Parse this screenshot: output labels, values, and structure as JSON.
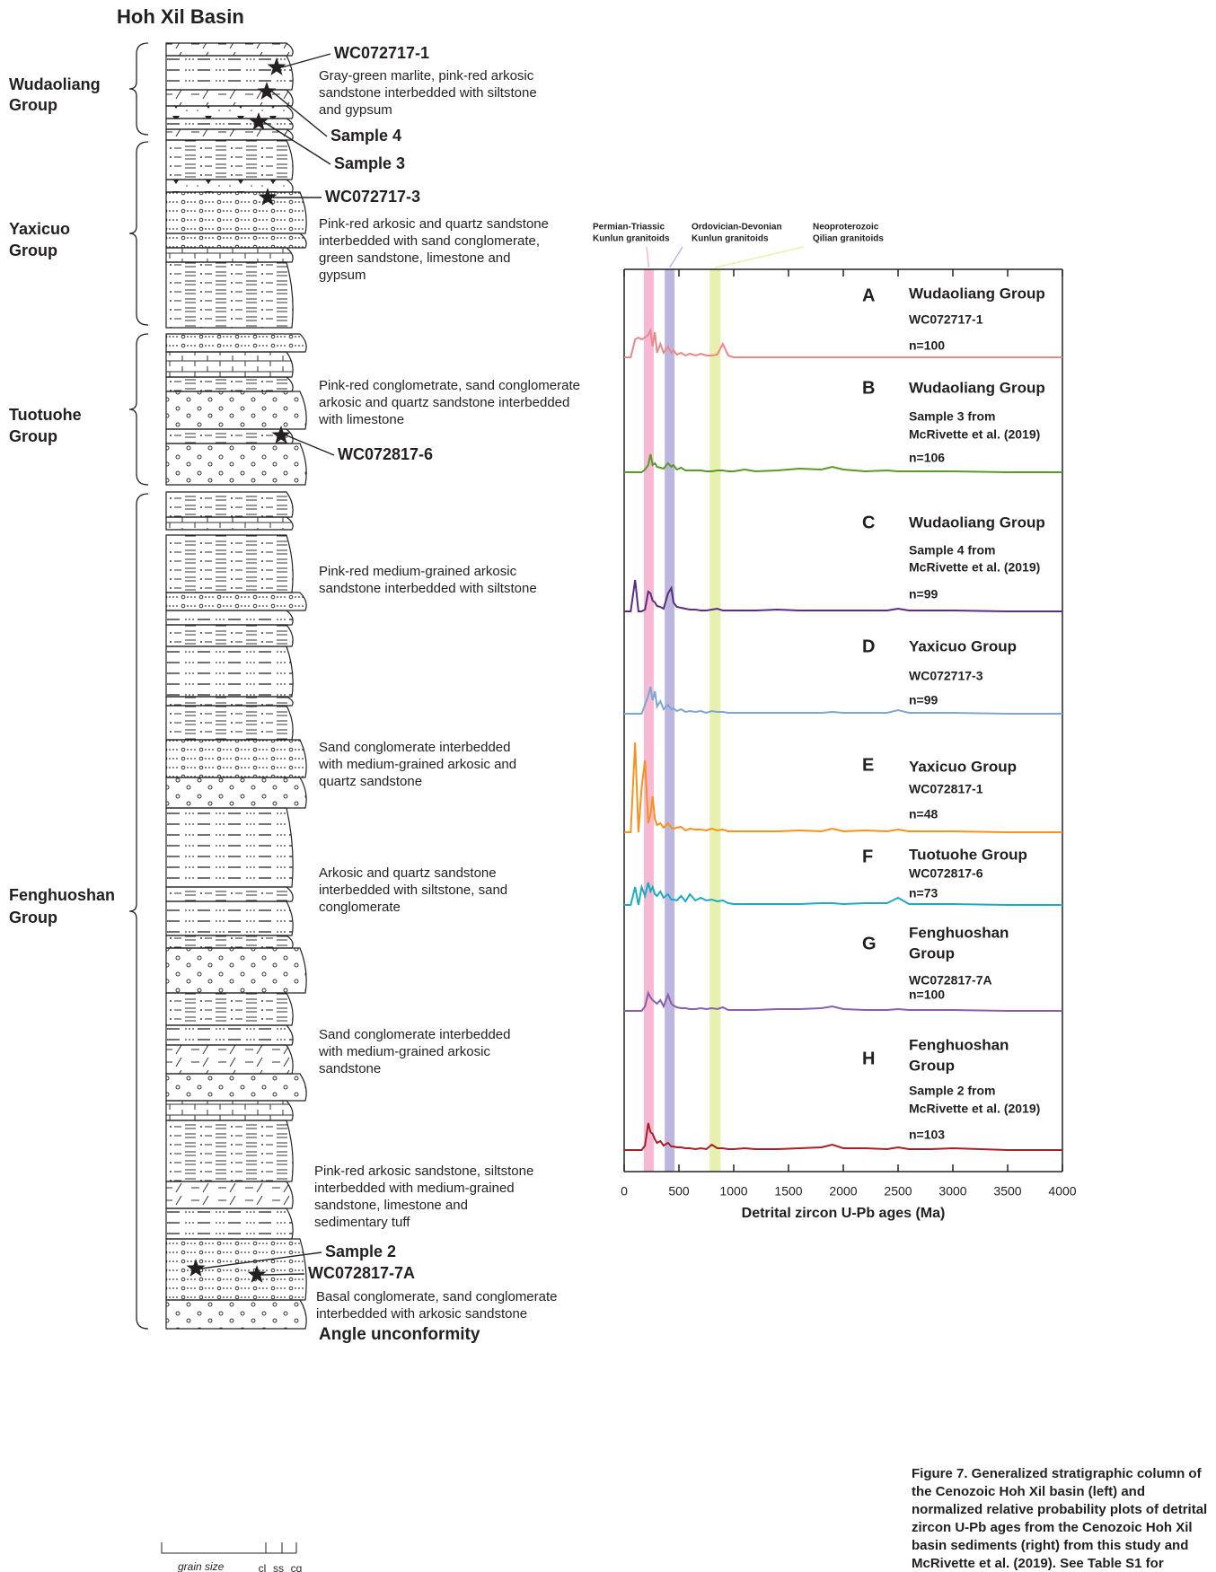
{
  "left": {
    "title": "Hoh Xil Basin",
    "groups": [
      [
        "Wudaoliang",
        "Group"
      ],
      [
        "Yaxicuo",
        "Group"
      ],
      [
        "Tuotuohe",
        "Group"
      ],
      [
        "Fenghuoshan",
        "Group"
      ]
    ],
    "samples": [
      "WC072717-1",
      "Sample 4",
      "Sample 3",
      "WC072717-3",
      "WC072817-6",
      "Sample 2",
      "WC072817-7A"
    ],
    "descriptions": [
      [
        "Gray-green marlite, pink-red arkosic",
        "sandstone interbedded with siltstone",
        "and gypsum"
      ],
      [
        "Pink-red arkosic and quartz sandstone",
        "interbedded with sand conglomerate,",
        "green sandstone, limestone and",
        "gypsum"
      ],
      [
        "Pink-red conglometrate, sand conglomerate",
        "arkosic and quartz sandstone interbedded",
        "with limestone"
      ],
      [
        "Pink-red  medium-grained arkosic",
        "sandstone interbedded with siltstone"
      ],
      [
        "Sand conglomerate interbedded",
        "with medium-grained arkosic and",
        "quartz sandstone"
      ],
      [
        "Arkosic and quartz sandstone",
        "interbedded with siltstone, sand",
        "conglomerate"
      ],
      [
        "Sand conglomerate interbedded",
        "with medium-grained arkosic",
        "sandstone"
      ],
      [
        "Pink-red arkosic sandstone, siltstone",
        "interbedded with medium-grained",
        "sandstone, limestone and",
        "sedimentary tuff"
      ],
      [
        "Basal conglomerate, sand conglomerate",
        "interbedded with arkosic sandstone"
      ]
    ],
    "unconformity": "Angle unconformity",
    "grain_size": "grain size",
    "grain_classes": [
      "cl",
      "ss",
      "cg"
    ]
  },
  "chart_data": {
    "type": "line",
    "xlabel": "Detrital zircon U-Pb ages (Ma)",
    "xlim": [
      0,
      4000
    ],
    "xticks": [
      0,
      500,
      1000,
      1500,
      2000,
      2500,
      3000,
      3500,
      4000
    ],
    "bands": [
      {
        "label": [
          "Permian-Triassic",
          "Kunlun granitoids"
        ],
        "range": [
          180,
          270
        ],
        "color": "#f7b8d4"
      },
      {
        "label": [
          "Ordovician-Devonian",
          "Kunlun granitoids"
        ],
        "range": [
          370,
          460
        ],
        "color": "#bdb6de"
      },
      {
        "label": [
          "Neoproterozoic",
          "Qilian granitoids"
        ],
        "range": [
          780,
          880
        ],
        "color": "#e8f0b0"
      }
    ],
    "x": [
      0,
      60,
      100,
      130,
      160,
      190,
      220,
      240,
      260,
      280,
      300,
      330,
      360,
      400,
      430,
      450,
      480,
      520,
      560,
      600,
      650,
      700,
      750,
      800,
      850,
      900,
      950,
      1000,
      1100,
      1200,
      1400,
      1600,
      1800,
      1900,
      2000,
      2200,
      2400,
      2500,
      2600,
      2800,
      3000,
      3500,
      4000
    ],
    "series": [
      {
        "letter": "A",
        "group": [
          "Wudaoliang Group"
        ],
        "sample": [
          "WC072717-1"
        ],
        "n": "n=100",
        "color": "#e8898a",
        "values": [
          0,
          0,
          0.2,
          0.22,
          0.2,
          0.22,
          0.25,
          0.3,
          0.12,
          0.28,
          0.05,
          0.15,
          0.05,
          0.12,
          0.05,
          0.08,
          0.03,
          0.05,
          0.02,
          0.04,
          0.02,
          0.04,
          0.02,
          0.02,
          0.03,
          0.15,
          0.02,
          0,
          0,
          0,
          0,
          0,
          0,
          0,
          0,
          0,
          0,
          0,
          0,
          0,
          0,
          0,
          0
        ]
      },
      {
        "letter": "B",
        "group": [
          "Wudaoliang Group"
        ],
        "sample": [
          "Sample 3 from",
          "McRivette et al. (2019)"
        ],
        "n": "n=106",
        "color": "#5a9a28",
        "values": [
          0,
          0,
          0,
          0,
          0,
          0.03,
          0.08,
          0.2,
          0.08,
          0.1,
          0.06,
          0.05,
          0.04,
          0.1,
          0.06,
          0.08,
          0.03,
          0.05,
          0.02,
          0.02,
          0.02,
          0.02,
          0.01,
          0.01,
          0.02,
          0.02,
          0.01,
          0.01,
          0.03,
          0.01,
          0.02,
          0.04,
          0.03,
          0.06,
          0.03,
          0.01,
          0.02,
          0.01,
          0.01,
          0.01,
          0.01,
          0,
          0
        ]
      },
      {
        "letter": "C",
        "group": [
          "Wudaoliang Group"
        ],
        "sample": [
          "Sample 4 from",
          "McRivette et al. (2019)"
        ],
        "n": "n=99",
        "color": "#5b2d82",
        "values": [
          0,
          0,
          0.35,
          0,
          0,
          0.02,
          0.22,
          0.2,
          0.12,
          0.1,
          0.06,
          0.05,
          0.03,
          0.2,
          0.26,
          0.1,
          0.05,
          0.04,
          0.03,
          0.02,
          0.02,
          0.01,
          0.01,
          0.02,
          0.03,
          0.01,
          0.01,
          0.01,
          0.01,
          0.01,
          0.02,
          0.01,
          0.01,
          0.01,
          0.01,
          0.01,
          0.01,
          0.03,
          0.01,
          0.01,
          0.01,
          0,
          0
        ]
      },
      {
        "letter": "D",
        "group": [
          "Yaxicuo Group"
        ],
        "sample": [
          "WC072717-3"
        ],
        "n": "n=99",
        "color": "#7ea6d3",
        "values": [
          0,
          0,
          0,
          0,
          0,
          0.1,
          0.2,
          0.3,
          0.15,
          0.25,
          0.08,
          0.14,
          0.05,
          0.1,
          0.05,
          0.06,
          0.03,
          0.05,
          0.02,
          0.03,
          0.02,
          0.03,
          0.01,
          0.03,
          0.02,
          0.02,
          0.01,
          0.01,
          0.01,
          0.01,
          0.01,
          0.01,
          0.01,
          0.02,
          0.01,
          0.01,
          0.01,
          0.04,
          0.01,
          0.01,
          0.01,
          0,
          0
        ]
      },
      {
        "letter": "E",
        "group": [
          "Yaxicuo Group"
        ],
        "sample": [
          "WC072817-1"
        ],
        "n": "n=48",
        "color": "#f6931e",
        "values": [
          0,
          0,
          1.0,
          0,
          0.5,
          0.8,
          0.1,
          0.2,
          0.4,
          0.15,
          0.08,
          0.1,
          0.05,
          0.1,
          0.05,
          0.04,
          0.05,
          0.06,
          0.02,
          0.04,
          0.03,
          0.03,
          0.02,
          0.04,
          0.02,
          0.03,
          0.01,
          0.01,
          0.01,
          0.01,
          0.01,
          0.02,
          0.01,
          0.04,
          0.01,
          0.02,
          0.01,
          0.03,
          0.01,
          0.01,
          0.01,
          0,
          0
        ]
      },
      {
        "letter": "F",
        "group": [
          "Tuotuohe Group"
        ],
        "sample": [
          "WC072817-6"
        ],
        "n": "n=73",
        "color": "#1ea9c4",
        "values": [
          0,
          0,
          0.2,
          0,
          0.2,
          0.1,
          0.25,
          0.15,
          0.2,
          0.12,
          0.1,
          0.15,
          0.08,
          0.12,
          0.06,
          0.06,
          0.05,
          0.1,
          0.04,
          0.12,
          0.05,
          0.08,
          0.05,
          0.06,
          0.04,
          0.05,
          0.02,
          0.01,
          0.01,
          0.01,
          0.01,
          0.01,
          0.02,
          0.02,
          0.01,
          0.02,
          0.02,
          0.08,
          0.01,
          0.01,
          0.01,
          0,
          0
        ]
      },
      {
        "letter": "G",
        "group": [
          "Fenghuoshan",
          "Group"
        ],
        "sample": [
          "WC072817-7A"
        ],
        "n": "n=100",
        "color": "#8b5eaa",
        "values": [
          0,
          0,
          0,
          0,
          0,
          0.05,
          0.2,
          0.15,
          0.12,
          0.1,
          0.08,
          0.12,
          0.05,
          0.18,
          0.08,
          0.06,
          0.04,
          0.03,
          0.03,
          0.02,
          0.02,
          0.03,
          0.02,
          0.03,
          0.02,
          0.04,
          0.01,
          0.01,
          0.01,
          0.01,
          0.02,
          0.02,
          0.03,
          0.05,
          0.02,
          0.01,
          0.01,
          0.02,
          0.01,
          0.01,
          0.01,
          0,
          0
        ]
      },
      {
        "letter": "H",
        "group": [
          "Fenghuoshan",
          "Group"
        ],
        "sample": [
          "Sample 2 from",
          "McRivette et al. (2019)"
        ],
        "n": "n=103",
        "color": "#a82027",
        "values": [
          0,
          0,
          0,
          0,
          0,
          0.05,
          0.3,
          0.2,
          0.18,
          0.12,
          0.08,
          0.1,
          0.05,
          0.08,
          0.04,
          0.04,
          0.03,
          0.03,
          0.02,
          0.02,
          0.01,
          0.02,
          0.01,
          0.06,
          0.02,
          0.02,
          0.01,
          0.01,
          0.02,
          0.01,
          0.01,
          0.02,
          0.03,
          0.06,
          0.02,
          0.02,
          0.01,
          0.03,
          0.01,
          0.01,
          0.02,
          0,
          0
        ]
      }
    ]
  },
  "caption": "Figure 7. Generalized stratigraphic column of the Cenozoic Hoh Xil basin (left) and normalized relative probability plots of detrital zircon U-Pb ages from the Cenozoic Hoh Xil basin sediments (right) from this study and McRivette et al. (2019). See Table S1 for detailed data."
}
